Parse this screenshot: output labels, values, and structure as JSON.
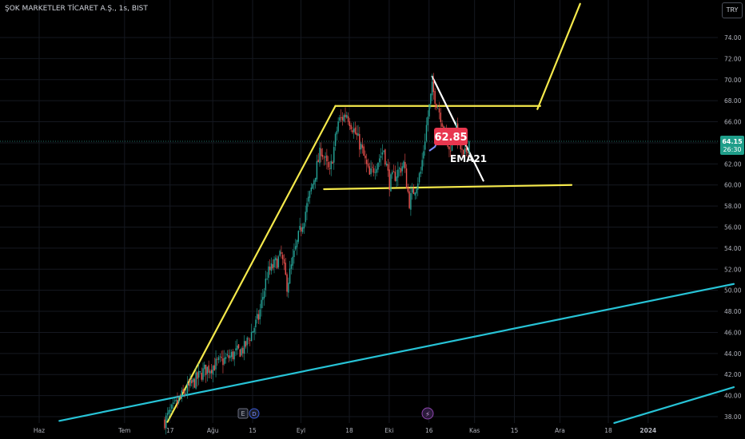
{
  "header": {
    "title": "ŞOK MARKETLER TİCARET A.Ş., 1s, BIST",
    "currency": "TRY"
  },
  "price_tag": {
    "price": "64.15",
    "countdown": "26:30"
  },
  "annotation": {
    "value": "62.85",
    "label": "EMA21"
  },
  "events": {
    "earnings": "E",
    "dividend": "D",
    "split": "⚡"
  },
  "colors": {
    "background": "#000000",
    "grid": "#151820",
    "axis_text": "#b2b5be",
    "candle_up": "#26a69a",
    "candle_down": "#ef5350",
    "trend_yellow": "#f5e94b",
    "trend_cyan": "#27c3d6",
    "trend_white": "#ffffff",
    "price_tag": "#1f9e8a",
    "badge": "#e8374f"
  },
  "chart_data": {
    "type": "candlestick",
    "title": "ŞOK MARKETLER TİCARET A.Ş., 1s, BIST",
    "x_ticks": [
      "Haz",
      "Tem",
      "17",
      "Ağu",
      "15",
      "Eyl",
      "18",
      "Eki",
      "16",
      "Kas",
      "15",
      "Ara",
      "18",
      "2024"
    ],
    "y_ticks": [
      38.0,
      40.0,
      42.0,
      44.0,
      46.0,
      48.0,
      50.0,
      52.0,
      54.0,
      56.0,
      58.0,
      60.0,
      62.0,
      64.0,
      66.0,
      68.0,
      70.0,
      72.0,
      74.0
    ],
    "y_tick_labels": [
      "38.00",
      "40.00",
      "42.00",
      "44.00",
      "46.00",
      "48.00",
      "50.00",
      "52.00",
      "54.00",
      "56.00",
      "58.00",
      "60.00",
      "62.00",
      "64.00",
      "66.00",
      "68.00",
      "70.00",
      "72.00",
      "74.00"
    ],
    "ylim": [
      37.4,
      77.2
    ],
    "last_price": 64.15,
    "grid": true,
    "series_waypoints": [
      {
        "x": "2023-07-12",
        "price": 37.6
      },
      {
        "x": "2023-07-19",
        "price": 40.3
      },
      {
        "x": "2023-07-26",
        "price": 42.4
      },
      {
        "x": "2023-08-02",
        "price": 43.4
      },
      {
        "x": "2023-08-09",
        "price": 44.5
      },
      {
        "x": "2023-08-14",
        "price": 47.4
      },
      {
        "x": "2023-08-17",
        "price": 51.5
      },
      {
        "x": "2023-08-22",
        "price": 53.3
      },
      {
        "x": "2023-08-24",
        "price": 50.5
      },
      {
        "x": "2023-08-28",
        "price": 55.0
      },
      {
        "x": "2023-09-01",
        "price": 59.0
      },
      {
        "x": "2023-09-05",
        "price": 63.4
      },
      {
        "x": "2023-09-08",
        "price": 61.0
      },
      {
        "x": "2023-09-11",
        "price": 66.0
      },
      {
        "x": "2023-09-14",
        "price": 66.8
      },
      {
        "x": "2023-09-19",
        "price": 63.6
      },
      {
        "x": "2023-09-22",
        "price": 60.8
      },
      {
        "x": "2023-09-27",
        "price": 63.4
      },
      {
        "x": "2023-09-29",
        "price": 60.2
      },
      {
        "x": "2023-10-04",
        "price": 62.0
      },
      {
        "x": "2023-10-06",
        "price": 58.4
      },
      {
        "x": "2023-10-10",
        "price": 61.2
      },
      {
        "x": "2023-10-12",
        "price": 65.6
      },
      {
        "x": "2023-10-14",
        "price": 69.2
      },
      {
        "x": "2023-10-17",
        "price": 66.6
      },
      {
        "x": "2023-10-20",
        "price": 63.2
      },
      {
        "x": "2023-10-22",
        "price": 65.6
      },
      {
        "x": "2023-10-25",
        "price": 62.4
      },
      {
        "x": "2023-10-27",
        "price": 64.15
      }
    ],
    "trendlines": [
      {
        "color": "yellow",
        "points": [
          [
            "2023-07-13",
            37.5
          ],
          [
            "2023-09-10",
            67.5
          ]
        ]
      },
      {
        "color": "yellow",
        "points": [
          [
            "2023-09-10",
            67.5
          ],
          [
            "2023-11-21",
            67.5
          ]
        ]
      },
      {
        "color": "yellow",
        "points": [
          [
            "2023-11-20",
            67.2
          ],
          [
            "2023-12-05",
            77.2
          ]
        ]
      },
      {
        "color": "yellow",
        "points": [
          [
            "2023-09-06",
            59.6
          ],
          [
            "2023-12-02",
            60.0
          ]
        ]
      },
      {
        "color": "white",
        "points": [
          [
            "2023-10-14",
            70.3
          ],
          [
            "2023-11-01",
            60.4
          ]
        ]
      },
      {
        "color": "cyan",
        "points": [
          [
            "2023-06-05",
            37.6
          ],
          [
            "2024-01-28",
            50.6
          ]
        ]
      },
      {
        "color": "cyan",
        "points": [
          [
            "2023-12-17",
            37.4
          ],
          [
            "2024-01-28",
            40.8
          ]
        ]
      }
    ]
  }
}
